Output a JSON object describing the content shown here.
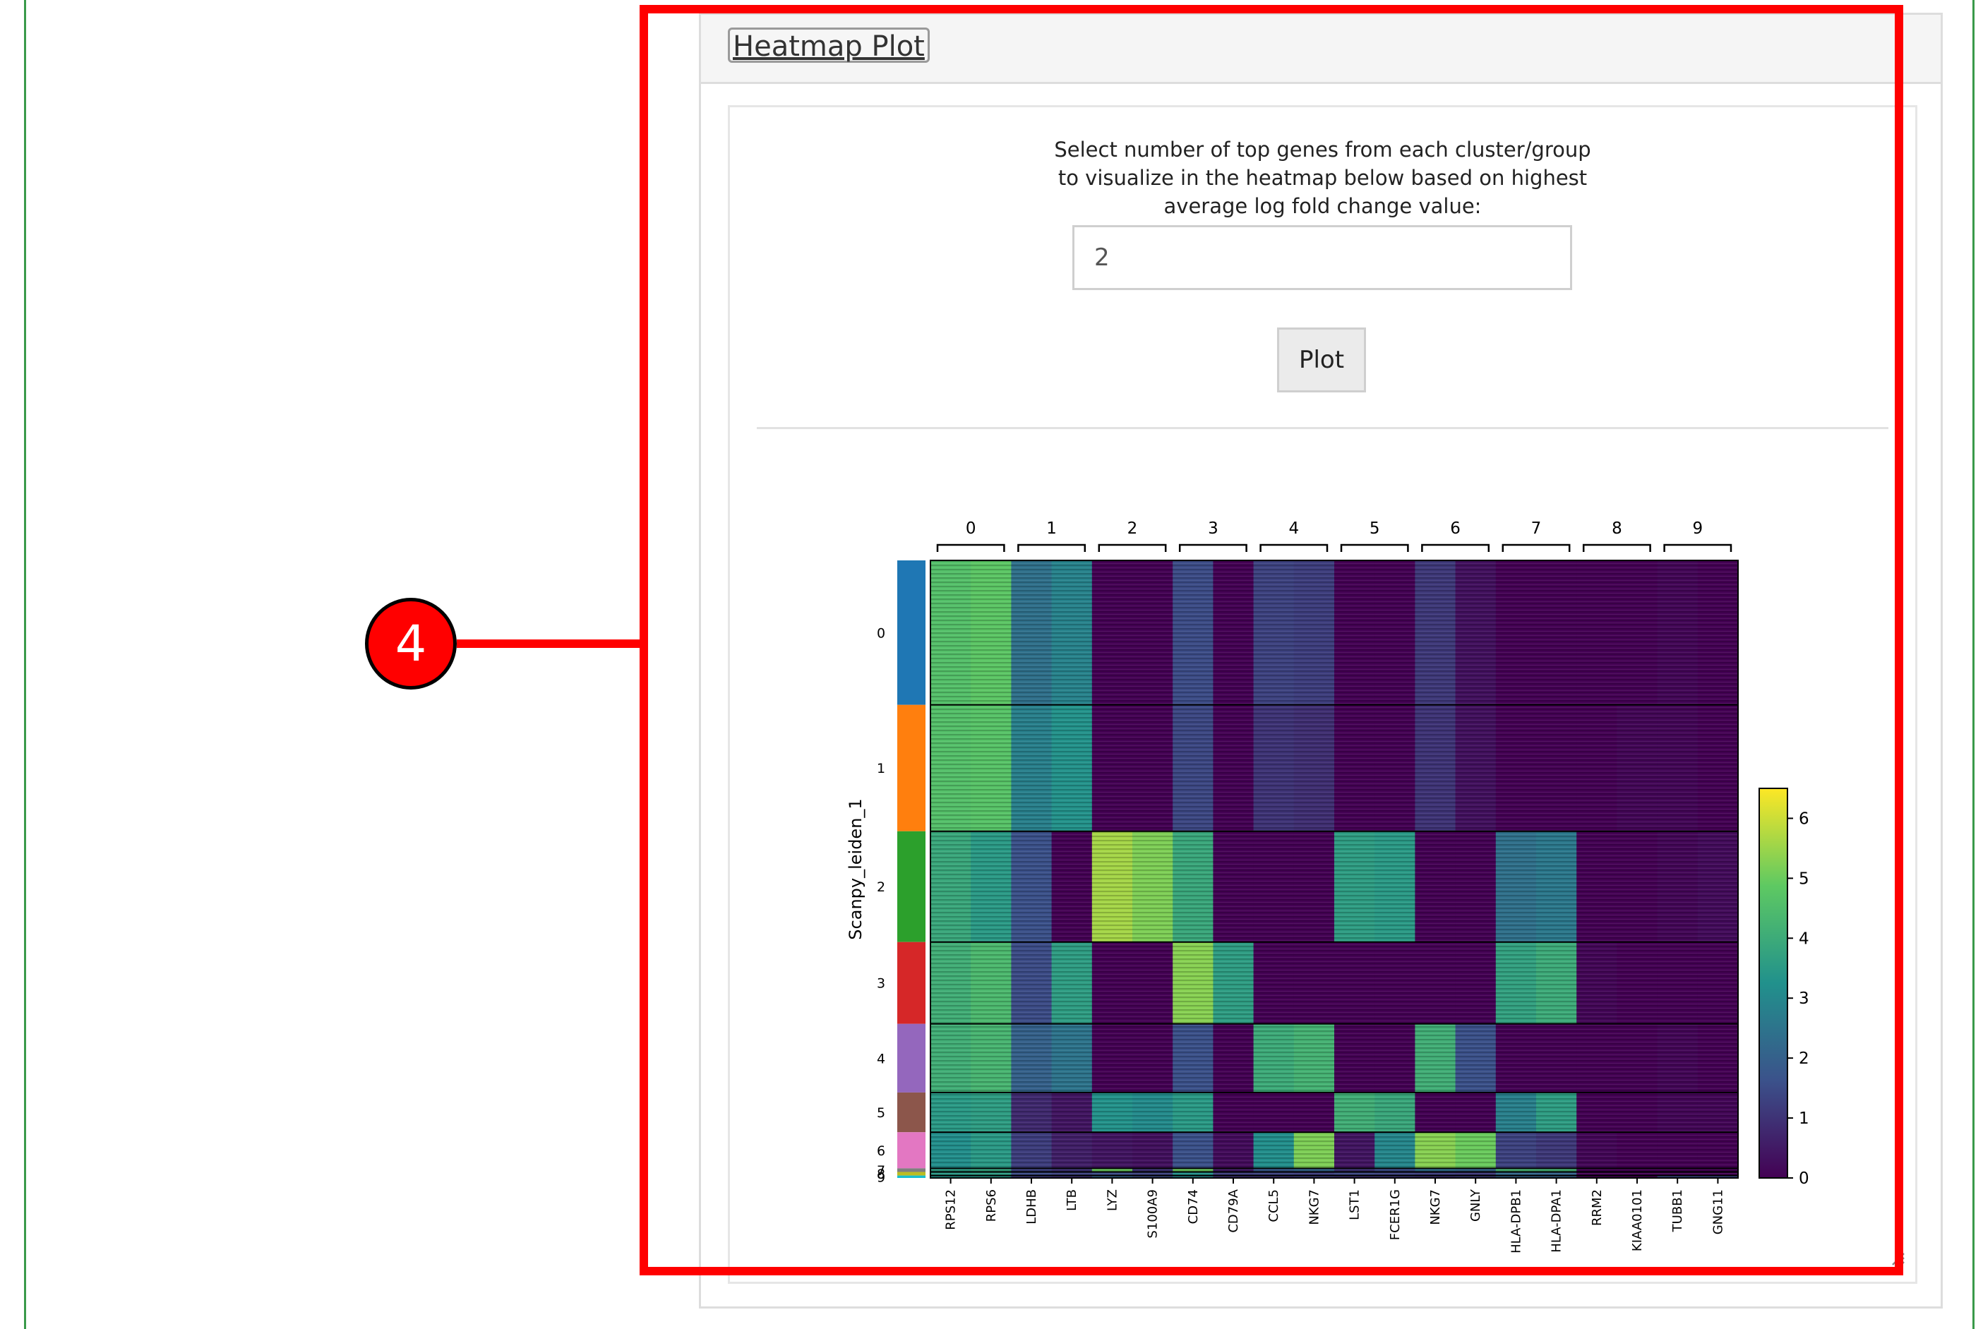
{
  "panel": {
    "tab_label": "Heatmap Plot",
    "help_lines": [
      "Select number of top genes from each cluster/group",
      "to visualize in the heatmap below based on highest",
      "average log fold change value:"
    ],
    "input_value": "2",
    "plot_button": "Plot"
  },
  "annotation": {
    "number": "4",
    "color": "#ff0000"
  },
  "chart_data": {
    "type": "heatmap",
    "ylabel": "Scanpy_leiden_1",
    "groups": [
      "0",
      "1",
      "2",
      "3",
      "4",
      "5",
      "6",
      "7",
      "8",
      "9"
    ],
    "group_colors": [
      "#1f77b4",
      "#ff7f0e",
      "#2ca02c",
      "#d62728",
      "#9467bd",
      "#8c564b",
      "#e377c2",
      "#7f7f7f",
      "#bcbd22",
      "#17becf"
    ],
    "group_cell_counts": [
      120,
      105,
      92,
      68,
      57,
      33,
      30,
      3,
      3,
      2
    ],
    "genes": [
      "RPS12",
      "RPS6",
      "LDHB",
      "LTB",
      "LYZ",
      "S100A9",
      "CD74",
      "CD79A",
      "CCL5",
      "NKG7",
      "LST1",
      "FCER1G",
      "NKG7",
      "GNLY",
      "HLA-DPB1",
      "HLA-DPA1",
      "RRM2",
      "KIAA0101",
      "TUBB1",
      "GNG11"
    ],
    "gene_groups": [
      "0",
      "1",
      "2",
      "3",
      "4",
      "5",
      "6",
      "7",
      "8",
      "9"
    ],
    "colorbar": {
      "min": 0,
      "max": 6.5,
      "ticks": [
        0,
        1,
        2,
        3,
        4,
        5,
        6
      ],
      "colormap": "viridis"
    },
    "mean_expression": [
      [
        4.6,
        4.8,
        2.4,
        2.9,
        0,
        0,
        1.5,
        0,
        1.3,
        1.2,
        0,
        0,
        1.1,
        0.3,
        0,
        0,
        0,
        0,
        0.1,
        0
      ],
      [
        4.6,
        4.7,
        2.8,
        3.3,
        0,
        0,
        1.4,
        0,
        1.0,
        0.9,
        0,
        0,
        1.0,
        0.3,
        0,
        0,
        0,
        0.1,
        0.1,
        0
      ],
      [
        3.9,
        3.5,
        1.6,
        0,
        5.6,
        5.2,
        3.9,
        0,
        0,
        0,
        3.6,
        3.5,
        0,
        0,
        2.4,
        2.6,
        0,
        0,
        0.1,
        0.2
      ],
      [
        4.1,
        4.4,
        1.5,
        3.6,
        0,
        0,
        5.3,
        3.6,
        0,
        0,
        0,
        0,
        0,
        0,
        3.7,
        4.0,
        0.1,
        0,
        0,
        0
      ],
      [
        4.1,
        4.3,
        2.0,
        2.5,
        0,
        0,
        1.6,
        0,
        4.0,
        4.2,
        0,
        0,
        4.1,
        1.6,
        0,
        0,
        0,
        0,
        0.1,
        0
      ],
      [
        3.5,
        3.6,
        0.8,
        0.4,
        3.3,
        3.1,
        3.5,
        0,
        0,
        0,
        4.1,
        3.9,
        0,
        0,
        2.8,
        3.6,
        0,
        0,
        0.1,
        0.1
      ],
      [
        3.2,
        3.5,
        1.2,
        0.6,
        0.4,
        0.3,
        1.6,
        0.2,
        3.2,
        5.2,
        0.4,
        3.0,
        5.3,
        5.0,
        1.3,
        1.1,
        0.1,
        0,
        0,
        0
      ],
      [
        3.6,
        3.8,
        1.3,
        1.0,
        5.0,
        1.0,
        5.0,
        0.5,
        1.8,
        2.1,
        1.0,
        1.5,
        2.3,
        2.1,
        4.3,
        4.2,
        0,
        0,
        0,
        0
      ],
      [
        3.5,
        3.6,
        1.5,
        1.3,
        1.5,
        1.3,
        3.3,
        1.2,
        1.3,
        1.2,
        1.4,
        1.3,
        1.2,
        1.1,
        2.2,
        2.1,
        0,
        0,
        0,
        0
      ],
      [
        3.3,
        3.4,
        1.2,
        1.0,
        2.0,
        1.5,
        3.0,
        1.0,
        1.0,
        1.2,
        1.0,
        1.1,
        1.0,
        1.2,
        2.0,
        2.0,
        0,
        0,
        1.5,
        1.4
      ]
    ]
  }
}
